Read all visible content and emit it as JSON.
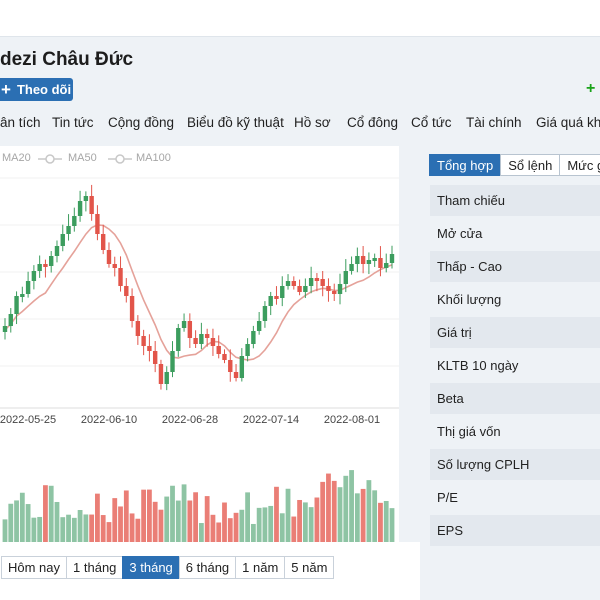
{
  "company": {
    "name": "dezi Châu Đức"
  },
  "header": {
    "follow_label": "Theo dõi",
    "plus_icon": "+",
    "compare_plus": "+"
  },
  "nav": {
    "tabs": [
      {
        "label": "ân tích"
      },
      {
        "label": "Tin tức"
      },
      {
        "label": "Cộng đồng"
      },
      {
        "label": "Biểu đồ kỹ thuật"
      },
      {
        "label": "Hồ sơ"
      },
      {
        "label": "Cổ đông"
      },
      {
        "label": "Cổ tức"
      },
      {
        "label": "Tài chính"
      },
      {
        "label": "Giá quá khứ"
      }
    ]
  },
  "legend": {
    "ma20": "MA20",
    "ma50": "MA50",
    "ma100": "MA100"
  },
  "chart_data": {
    "type": "candlestick",
    "x_labels": [
      "2022-05-25",
      "2022-06-10",
      "2022-06-28",
      "2022-07-14",
      "2022-08-01"
    ],
    "colors": {
      "up": "#3c9d5e",
      "down": "#e2554a",
      "ma20": "#e5a29a",
      "volume_up": "#8ec4a4",
      "volume_down": "#ea7e76"
    }
  },
  "range": {
    "buttons": [
      {
        "label": "Hôm nay",
        "active": false
      },
      {
        "label": "1 tháng",
        "active": false
      },
      {
        "label": "3 tháng",
        "active": true
      },
      {
        "label": "6 tháng",
        "active": false
      },
      {
        "label": "1 năm",
        "active": false
      },
      {
        "label": "5 năm",
        "active": false
      }
    ]
  },
  "summary": {
    "tabs": [
      {
        "label": "Tổng hợp",
        "active": true
      },
      {
        "label": "Sổ lệnh",
        "active": false
      },
      {
        "label": "Mức g",
        "active": false
      }
    ],
    "rows": [
      {
        "label": "Tham chiếu"
      },
      {
        "label": "Mở cửa"
      },
      {
        "label": "Thấp - Cao"
      },
      {
        "label": "Khối lượng"
      },
      {
        "label": "Giá trị"
      },
      {
        "label": "KLTB 10 ngày"
      },
      {
        "label": "Beta"
      },
      {
        "label": "Thị giá vốn"
      },
      {
        "label": "Số lượng CPLH"
      },
      {
        "label": "P/E"
      },
      {
        "label": "EPS"
      }
    ]
  }
}
